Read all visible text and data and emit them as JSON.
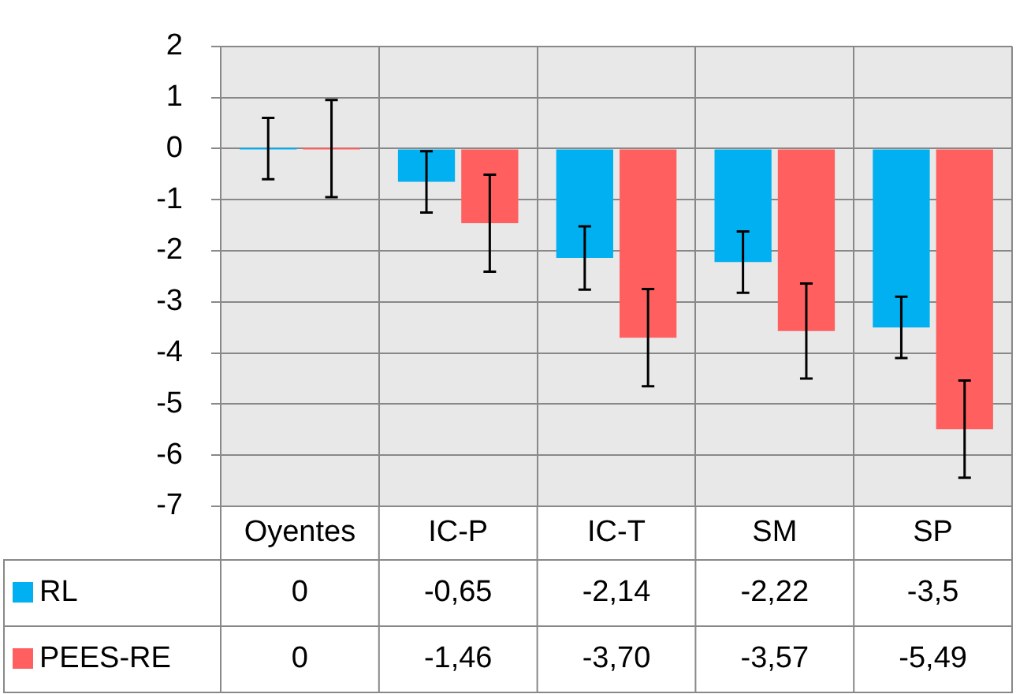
{
  "chart_data": {
    "type": "bar",
    "categories": [
      "Oyentes",
      "IC-P",
      "IC-T",
      "SM",
      "SP"
    ],
    "series": [
      {
        "name": "RL",
        "color": "#00b0f0",
        "values": [
          0,
          -0.65,
          -2.14,
          -2.22,
          -3.5
        ],
        "errors": [
          0.6,
          0.6,
          0.62,
          0.6,
          0.6
        ],
        "value_labels": [
          "0",
          "-0,65",
          "-2,14",
          "-2,22",
          "-3,5"
        ]
      },
      {
        "name": "PEES-RE",
        "color": "#ff5f5f",
        "values": [
          0,
          -1.46,
          -3.7,
          -3.57,
          -5.49
        ],
        "errors": [
          0.95,
          0.95,
          0.95,
          0.93,
          0.95
        ],
        "value_labels": [
          "0",
          "-1,46",
          "-3,70",
          "-3,57",
          "-5,49"
        ]
      }
    ],
    "ylim": [
      -7,
      2
    ],
    "yticks": [
      -7,
      -6,
      -5,
      -4,
      -3,
      -2,
      -1,
      0,
      1,
      2
    ],
    "grid": true,
    "legend": "bottom"
  }
}
